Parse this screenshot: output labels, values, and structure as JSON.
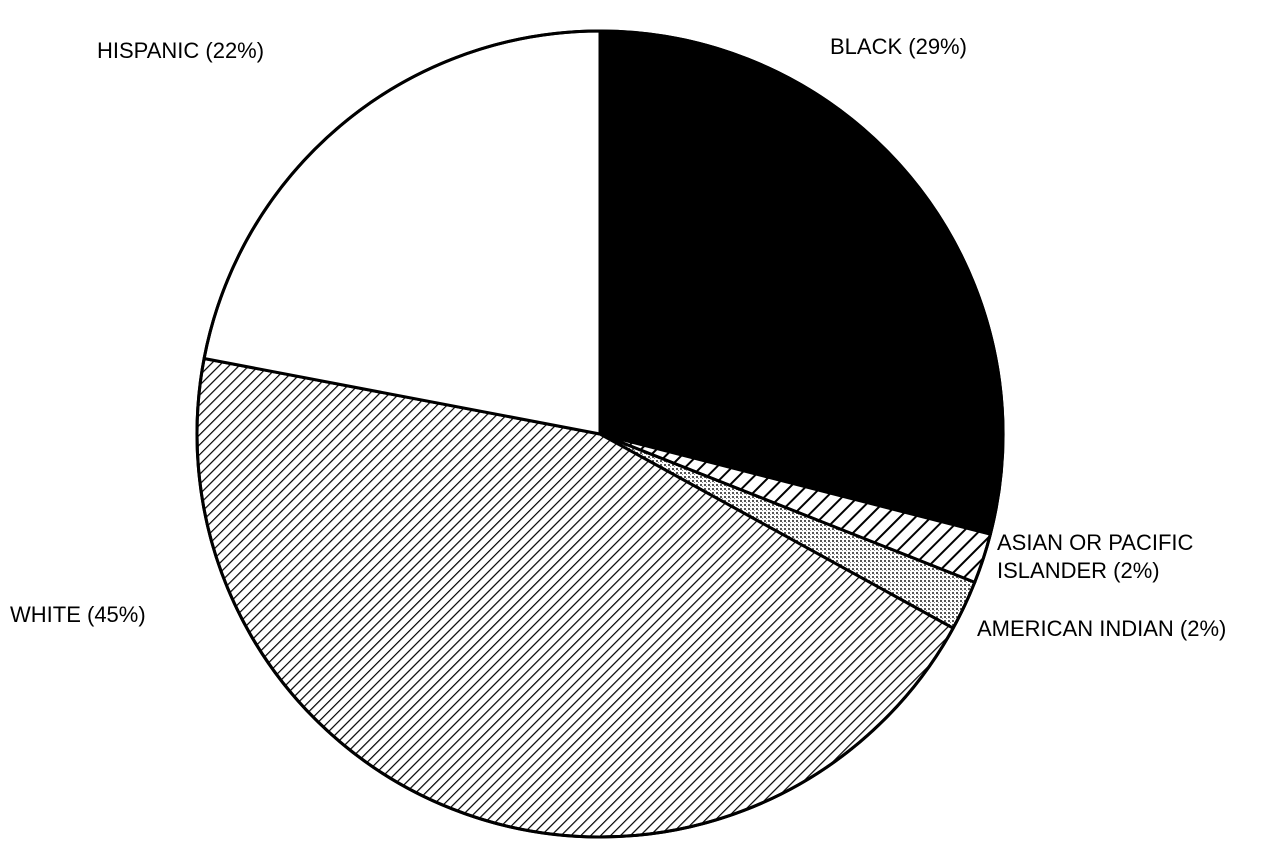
{
  "chart_data": {
    "type": "pie",
    "title": "",
    "start_angle_deg": 0,
    "direction": "clockwise",
    "slices": [
      {
        "key": "black",
        "label_lines": [
          "BLACK (29%)"
        ],
        "value": 29,
        "fill": "solid-black",
        "color": "#000000"
      },
      {
        "key": "asian",
        "label_lines": [
          "ASIAN OR PACIFIC",
          "ISLANDER (2%)"
        ],
        "value": 2,
        "fill": "sparse-diagonal-hatch",
        "color": "#000000"
      },
      {
        "key": "american-indian",
        "label_lines": [
          "AMERICAN INDIAN (2%)"
        ],
        "value": 2,
        "fill": "stipple",
        "color": "#bfbfbf"
      },
      {
        "key": "white",
        "label_lines": [
          "WHITE (45%)"
        ],
        "value": 45,
        "fill": "dense-diagonal-hatch",
        "color": "#000000"
      },
      {
        "key": "hispanic",
        "label_lines": [
          "HISPANIC (22%)"
        ],
        "value": 22,
        "fill": "white",
        "color": "#ffffff"
      }
    ]
  }
}
